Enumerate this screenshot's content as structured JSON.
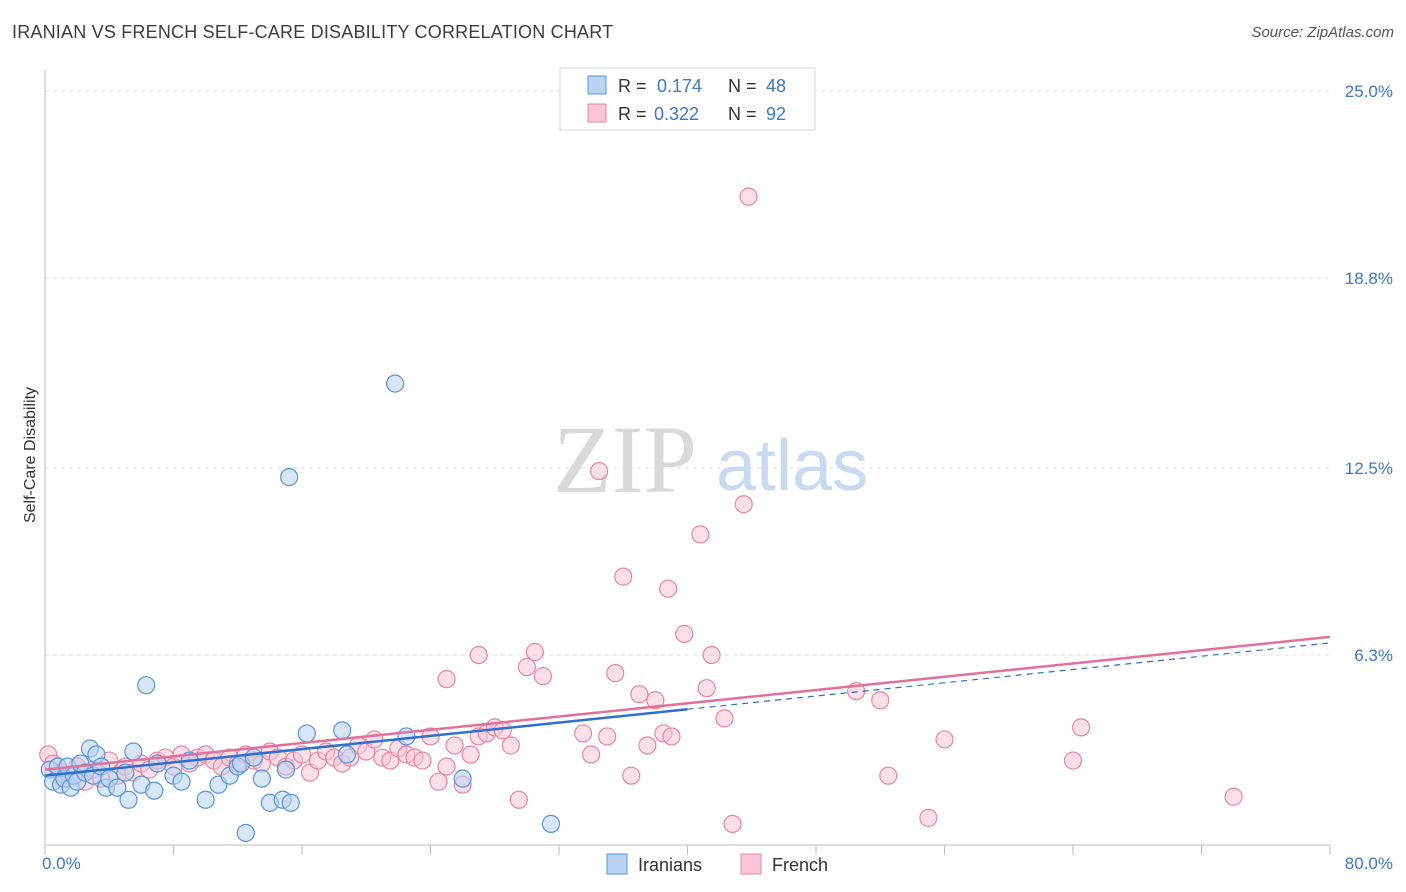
{
  "title": "IRANIAN VS FRENCH SELF-CARE DISABILITY CORRELATION CHART",
  "source": "Source: ZipAtlas.com",
  "watermark": {
    "zip": "ZIP",
    "atlas": "atlas"
  },
  "legend": {
    "rows": [
      {
        "r_label": "R =",
        "r_value": "0.174",
        "n_label": "N =",
        "n_value": "48"
      },
      {
        "r_label": "R =",
        "r_value": "0.322",
        "n_label": "N =",
        "n_value": "92"
      }
    ]
  },
  "chart_data": {
    "type": "scatter",
    "title": "IRANIAN VS FRENCH SELF-CARE DISABILITY CORRELATION CHART",
    "xlabel": "",
    "ylabel": "Self-Care Disability",
    "xlim": [
      0,
      80
    ],
    "ylim": [
      0,
      25.7
    ],
    "x_tick_labels": [
      {
        "value": 0,
        "label": "0.0%"
      },
      {
        "value": 80,
        "label": "80.0%"
      }
    ],
    "y_tick_labels": [
      {
        "value": 6.3,
        "label": "6.3%"
      },
      {
        "value": 12.5,
        "label": "12.5%"
      },
      {
        "value": 18.8,
        "label": "18.8%"
      },
      {
        "value": 25.0,
        "label": "25.0%"
      }
    ],
    "grid": true,
    "legend_position": "top-center",
    "colors": {
      "iranians_fill": "#b8d3f3",
      "iranians_stroke": "#5b95da",
      "iranians_line": "#2f6fcf",
      "french_fill": "#f8c6d6",
      "french_stroke": "#e984a7",
      "french_line": "#e0719a"
    },
    "series": [
      {
        "name": "Iranians",
        "r": 0.174,
        "n": 48,
        "trend": {
          "x": [
            0,
            40
          ],
          "y": [
            2.3,
            4.5
          ]
        },
        "points": [
          [
            0.3,
            2.5
          ],
          [
            0.5,
            2.1
          ],
          [
            0.8,
            2.6
          ],
          [
            1.0,
            2.0
          ],
          [
            1.2,
            2.2
          ],
          [
            1.4,
            2.6
          ],
          [
            1.6,
            1.9
          ],
          [
            1.8,
            2.3
          ],
          [
            2.0,
            2.1
          ],
          [
            2.2,
            2.7
          ],
          [
            2.5,
            2.4
          ],
          [
            2.8,
            3.2
          ],
          [
            3.0,
            2.3
          ],
          [
            3.2,
            3.0
          ],
          [
            3.5,
            2.6
          ],
          [
            3.8,
            1.9
          ],
          [
            4.0,
            2.2
          ],
          [
            4.5,
            1.9
          ],
          [
            5.0,
            2.4
          ],
          [
            5.2,
            1.5
          ],
          [
            5.5,
            3.1
          ],
          [
            6.0,
            2.0
          ],
          [
            6.3,
            5.3
          ],
          [
            6.8,
            1.8
          ],
          [
            7.0,
            2.7
          ],
          [
            8.0,
            2.3
          ],
          [
            8.5,
            2.1
          ],
          [
            9.0,
            2.8
          ],
          [
            10.0,
            1.5
          ],
          [
            10.8,
            2.0
          ],
          [
            11.5,
            2.3
          ],
          [
            12.0,
            2.6
          ],
          [
            12.5,
            0.4
          ],
          [
            12.2,
            2.7
          ],
          [
            13.0,
            2.9
          ],
          [
            13.5,
            2.2
          ],
          [
            14.0,
            1.4
          ],
          [
            14.8,
            1.5
          ],
          [
            15.0,
            2.5
          ],
          [
            15.2,
            12.2
          ],
          [
            15.3,
            1.4
          ],
          [
            16.3,
            3.7
          ],
          [
            18.5,
            3.8
          ],
          [
            18.8,
            3.0
          ],
          [
            22.5,
            3.6
          ],
          [
            21.8,
            15.3
          ],
          [
            26.0,
            2.2
          ],
          [
            31.5,
            0.7
          ]
        ]
      },
      {
        "name": "French",
        "r": 0.322,
        "n": 92,
        "trend": {
          "x": [
            0,
            80
          ],
          "y": [
            2.5,
            6.9
          ]
        },
        "points": [
          [
            0.2,
            3.0
          ],
          [
            0.5,
            2.7
          ],
          [
            1.0,
            2.4
          ],
          [
            1.5,
            2.3
          ],
          [
            2.0,
            2.6
          ],
          [
            2.5,
            2.1
          ],
          [
            3.0,
            2.5
          ],
          [
            3.5,
            2.2
          ],
          [
            4.0,
            2.8
          ],
          [
            4.5,
            2.3
          ],
          [
            5.0,
            2.6
          ],
          [
            5.5,
            2.4
          ],
          [
            6.0,
            2.7
          ],
          [
            6.5,
            2.5
          ],
          [
            7.0,
            2.8
          ],
          [
            7.5,
            2.9
          ],
          [
            8.0,
            2.6
          ],
          [
            8.5,
            3.0
          ],
          [
            9.0,
            2.7
          ],
          [
            9.5,
            2.9
          ],
          [
            10.0,
            3.0
          ],
          [
            10.5,
            2.8
          ],
          [
            11.0,
            2.6
          ],
          [
            11.5,
            2.9
          ],
          [
            12.0,
            2.7
          ],
          [
            12.5,
            3.0
          ],
          [
            13.0,
            2.8
          ],
          [
            13.5,
            2.7
          ],
          [
            14.0,
            3.1
          ],
          [
            14.5,
            2.9
          ],
          [
            15.0,
            2.6
          ],
          [
            15.5,
            2.8
          ],
          [
            16.0,
            3.0
          ],
          [
            16.5,
            2.4
          ],
          [
            17.0,
            2.8
          ],
          [
            17.5,
            3.1
          ],
          [
            18.0,
            2.9
          ],
          [
            18.5,
            2.7
          ],
          [
            19.0,
            2.9
          ],
          [
            19.5,
            3.3
          ],
          [
            20.0,
            3.1
          ],
          [
            20.5,
            3.5
          ],
          [
            21.0,
            2.9
          ],
          [
            21.5,
            2.8
          ],
          [
            22.0,
            3.2
          ],
          [
            22.5,
            3.0
          ],
          [
            23.0,
            2.9
          ],
          [
            23.5,
            2.8
          ],
          [
            24.0,
            3.6
          ],
          [
            24.5,
            2.1
          ],
          [
            25.0,
            2.6
          ],
          [
            25.5,
            3.3
          ],
          [
            26.0,
            2.0
          ],
          [
            26.5,
            3.0
          ],
          [
            27.0,
            3.6
          ],
          [
            27.5,
            3.7
          ],
          [
            28.0,
            3.9
          ],
          [
            28.5,
            3.8
          ],
          [
            29.0,
            3.3
          ],
          [
            29.5,
            1.5
          ],
          [
            30.0,
            5.9
          ],
          [
            30.5,
            6.4
          ],
          [
            31.0,
            5.6
          ],
          [
            25.0,
            5.5
          ],
          [
            27.0,
            6.3
          ],
          [
            33.5,
            3.7
          ],
          [
            34.0,
            3.0
          ],
          [
            34.5,
            12.4
          ],
          [
            35.0,
            3.6
          ],
          [
            35.5,
            5.7
          ],
          [
            36.0,
            8.9
          ],
          [
            36.5,
            2.3
          ],
          [
            37.0,
            5.0
          ],
          [
            37.5,
            3.3
          ],
          [
            38.0,
            4.8
          ],
          [
            38.5,
            3.7
          ],
          [
            39.0,
            3.6
          ],
          [
            38.8,
            8.5
          ],
          [
            39.8,
            7.0
          ],
          [
            40.8,
            10.3
          ],
          [
            41.2,
            5.2
          ],
          [
            41.5,
            6.3
          ],
          [
            42.3,
            4.2
          ],
          [
            42.8,
            0.7
          ],
          [
            43.5,
            11.3
          ],
          [
            43.8,
            21.5
          ],
          [
            50.5,
            5.1
          ],
          [
            52.0,
            4.8
          ],
          [
            52.5,
            2.3
          ],
          [
            55.0,
            0.9
          ],
          [
            56.0,
            3.5
          ],
          [
            64.0,
            2.8
          ],
          [
            64.5,
            3.9
          ],
          [
            74.0,
            1.6
          ]
        ]
      }
    ]
  }
}
